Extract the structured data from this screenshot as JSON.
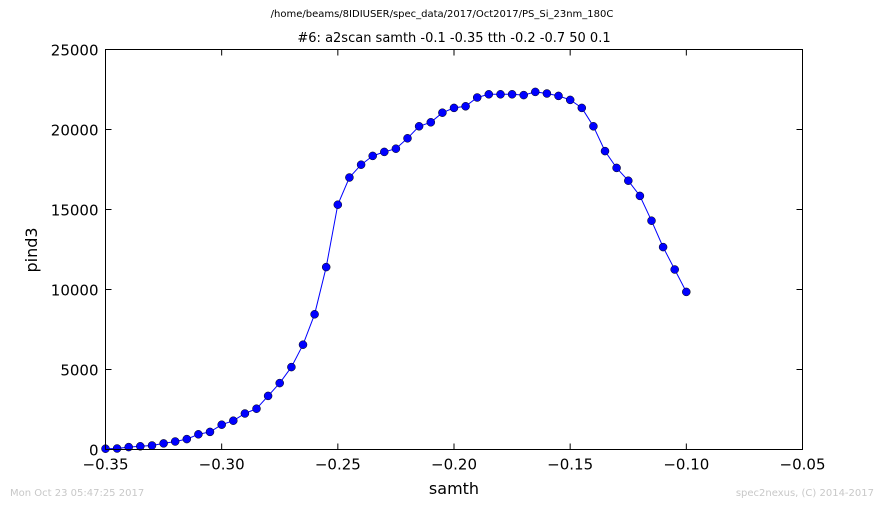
{
  "file_path": "/home/beams/8IDIUSER/spec_data/2017/Oct2017/PS_Si_23nm_180C",
  "footer_left": "Mon Oct 23 05:47:25 2017",
  "footer_right": "spec2nexus, (C) 2014-2017",
  "chart_data": {
    "type": "line",
    "title": "#6: a2scan  samth -0.1 -0.35  tth -0.2 -0.7  50 0.1",
    "xlabel": "samth",
    "ylabel": "pind3",
    "xlim": [
      -0.35,
      -0.05
    ],
    "ylim": [
      0,
      25000
    ],
    "xticks": [
      -0.35,
      -0.3,
      -0.25,
      -0.2,
      -0.15,
      -0.1,
      -0.05
    ],
    "xtick_labels": [
      "−0.35",
      "−0.30",
      "−0.25",
      "−0.20",
      "−0.15",
      "−0.10",
      "−0.05"
    ],
    "yticks": [
      0,
      5000,
      10000,
      15000,
      20000,
      25000
    ],
    "ytick_labels": [
      "0",
      "5000",
      "10000",
      "15000",
      "20000",
      "25000"
    ],
    "grid": false,
    "colors": {
      "series": "#0000ff"
    },
    "series": [
      {
        "x": [
          -0.35,
          -0.345,
          -0.34,
          -0.335,
          -0.33,
          -0.325,
          -0.32,
          -0.315,
          -0.31,
          -0.305,
          -0.3,
          -0.295,
          -0.29,
          -0.285,
          -0.28,
          -0.275,
          -0.27,
          -0.265,
          -0.26,
          -0.255,
          -0.25,
          -0.245,
          -0.24,
          -0.235,
          -0.23,
          -0.225,
          -0.22,
          -0.215,
          -0.21,
          -0.205,
          -0.2,
          -0.195,
          -0.19,
          -0.185,
          -0.18,
          -0.175,
          -0.17,
          -0.165,
          -0.16,
          -0.155,
          -0.15,
          -0.145,
          -0.14,
          -0.135,
          -0.13,
          -0.125,
          -0.12,
          -0.115,
          -0.11,
          -0.105,
          -0.1
        ],
        "y": [
          50,
          60,
          150,
          200,
          250,
          380,
          500,
          650,
          950,
          1100,
          1550,
          1800,
          2250,
          2550,
          3350,
          4150,
          5150,
          6550,
          8450,
          11400,
          15300,
          17000,
          17800,
          18350,
          18600,
          18800,
          19450,
          20200,
          20450,
          21050,
          21350,
          21450,
          22000,
          22200,
          22200,
          22200,
          22150,
          22350,
          22250,
          22100,
          21850,
          21350,
          20200,
          18650,
          17600,
          16800,
          15850,
          14300,
          12650,
          11250,
          9850
        ]
      }
    ]
  }
}
